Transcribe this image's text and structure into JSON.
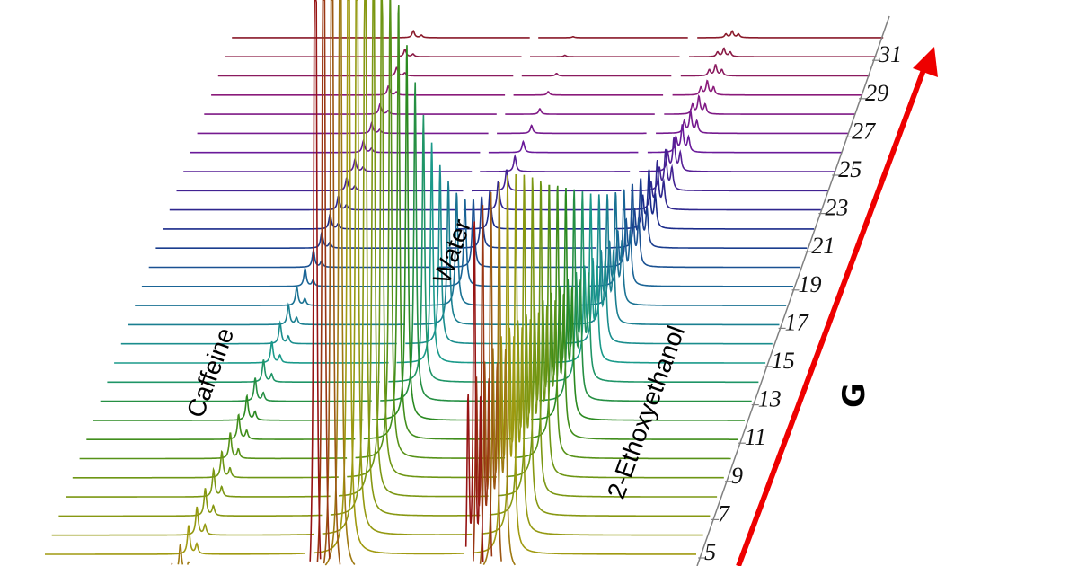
{
  "chart_data": {
    "type": "line",
    "subtype": "stacked-3d-spectra",
    "axis_label": "G",
    "axis_ticks": [
      "5",
      "7",
      "9",
      "11",
      "13",
      "15",
      "17",
      "19",
      "21",
      "23",
      "25",
      "27",
      "29",
      "31"
    ],
    "g_levels": [
      1,
      2,
      3,
      4,
      5,
      6,
      7,
      8,
      9,
      10,
      11,
      12,
      13,
      14,
      15,
      16,
      17,
      18,
      19,
      20,
      21,
      22,
      23,
      24,
      25,
      26,
      27,
      28,
      29,
      30,
      31,
      32
    ],
    "series": [
      {
        "name": "Caffeine",
        "intensity": [
          60,
          60,
          59,
          59,
          58,
          57,
          56,
          55,
          53,
          52,
          50,
          49,
          47,
          45,
          43,
          42,
          40,
          38,
          36,
          34,
          32,
          30,
          28,
          26,
          25,
          23,
          21,
          20,
          18,
          17,
          15,
          14
        ]
      },
      {
        "name": "Water",
        "intensity": [
          1987,
          1948,
          1884,
          1800,
          1693,
          1573,
          1443,
          1306,
          1164,
          1027,
          892,
          766,
          648,
          541,
          446,
          362,
          292,
          230,
          180,
          139,
          106,
          79,
          59,
          43,
          31,
          22,
          16,
          11,
          7,
          5,
          3,
          2
        ]
      },
      {
        "name": "2-Ethoxyethanol",
        "intensity": [
          797,
          787,
          771,
          751,
          727,
          693,
          657,
          618,
          578,
          536,
          494,
          450,
          408,
          366,
          325,
          287,
          251,
          219,
          189,
          162,
          136,
          115,
          96,
          80,
          66,
          54,
          43,
          35,
          28,
          22,
          17,
          13
        ]
      }
    ],
    "colors": {
      "gradient_low_g": "#a09a10",
      "gradient_mid_low": "#2a8a20",
      "gradient_mid": "#1a9a8a",
      "gradient_mid_high": "#1a2a8a",
      "gradient_high": "#6a1a9a",
      "gradient_top": "#8a1a2a",
      "axis": "#808080",
      "arrow": "#ee0000"
    },
    "grid": false,
    "legend": "none"
  }
}
